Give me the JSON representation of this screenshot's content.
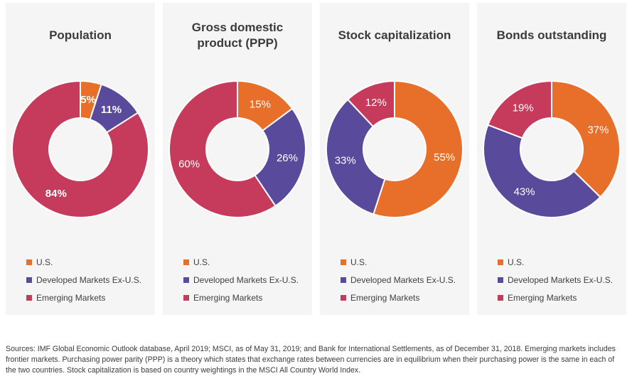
{
  "slice_colors": [
    "#e76f2a",
    "#5a4a9c",
    "#c63b5c"
  ],
  "panel_bg": "#f5f5f6",
  "legend": [
    "U.S.",
    "Developed Markets Ex-U.S.",
    "Emerging Markets"
  ],
  "chart_data": [
    {
      "type": "pie",
      "subtype": "donut",
      "title": "Population",
      "categories": [
        "U.S.",
        "Developed Markets Ex-U.S.",
        "Emerging Markets"
      ],
      "values": [
        5,
        11,
        84
      ],
      "labels": [
        "5%",
        "11%",
        "84%"
      ],
      "start_angle_deg": 0,
      "direction": "clockwise",
      "legend_position": "bottom"
    },
    {
      "type": "pie",
      "subtype": "donut",
      "title": "Gross domestic product (PPP)",
      "categories": [
        "U.S.",
        "Developed Markets Ex-U.S.",
        "Emerging Markets"
      ],
      "values": [
        15,
        26,
        60
      ],
      "labels": [
        "15%",
        "26%",
        "60%"
      ],
      "start_angle_deg": 0,
      "direction": "clockwise",
      "legend_position": "bottom"
    },
    {
      "type": "pie",
      "subtype": "donut",
      "title": "Stock capitalization",
      "categories": [
        "U.S.",
        "Developed Markets Ex-U.S.",
        "Emerging Markets"
      ],
      "values": [
        55,
        33,
        12
      ],
      "labels": [
        "55%",
        "33%",
        "12%"
      ],
      "start_angle_deg": 0,
      "direction": "clockwise",
      "legend_position": "bottom"
    },
    {
      "type": "pie",
      "subtype": "donut",
      "title": "Bonds outstanding",
      "categories": [
        "U.S.",
        "Developed Markets Ex-U.S.",
        "Emerging Markets"
      ],
      "values": [
        37,
        43,
        19
      ],
      "labels": [
        "37%",
        "43%",
        "19%"
      ],
      "start_angle_deg": 0,
      "direction": "clockwise",
      "legend_position": "bottom"
    }
  ],
  "footer": "Sources: IMF Global Economic Outlook database, April 2019; MSCI, as of May 31, 2019; and Bank for International Settlements, as of December 31, 2018. Emerging markets includes frontier markets. Purchasing power parity (PPP) is a theory which states that exchange rates between currencies are in equilibrium when their purchasing power is the same in each of the two countries. Stock capitalization is based on country weightings in the MSCI All Country World Index."
}
